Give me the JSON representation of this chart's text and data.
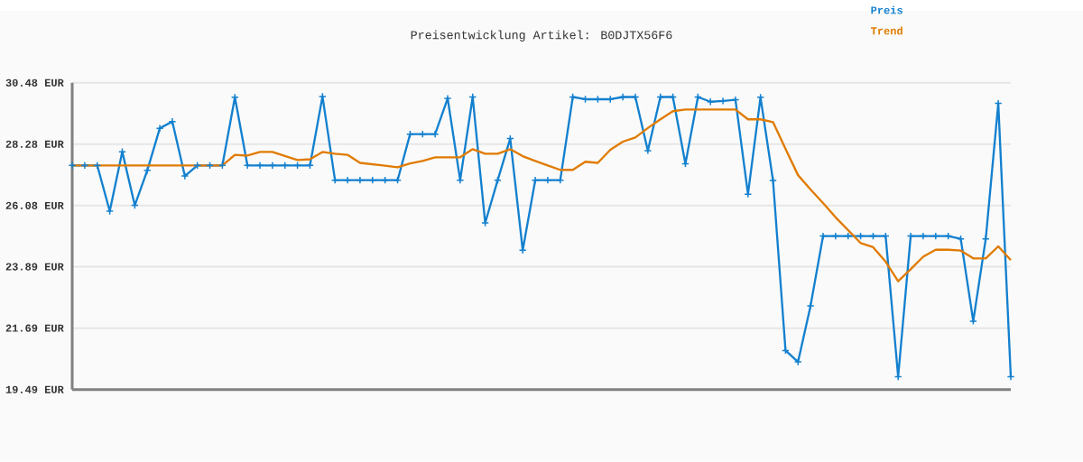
{
  "chart_data": {
    "type": "line",
    "title": "Preisentwicklung Artikel: B0DJTX56F6",
    "categories": [
      null,
      null,
      null,
      null,
      null,
      null,
      null,
      null,
      null,
      null,
      null,
      null,
      null,
      null,
      null,
      null,
      null,
      null,
      null,
      null,
      null,
      null,
      null,
      null,
      null,
      null,
      null,
      null,
      null,
      null,
      null,
      null,
      null,
      null,
      null,
      null,
      null,
      null,
      null,
      null,
      null,
      null,
      null,
      null,
      null,
      null,
      null,
      null,
      null,
      null,
      null,
      null,
      null,
      null,
      null,
      null,
      null,
      null,
      null,
      null,
      null,
      null,
      null,
      null,
      null,
      null,
      null,
      null,
      null,
      null,
      null,
      null,
      null,
      null,
      null,
      null
    ],
    "series": [
      {
        "name": "Preis",
        "color": "#1380cf",
        "marker": "cross",
        "values": [
          27.52,
          27.52,
          27.52,
          25.88,
          28.01,
          26.09,
          27.34,
          28.85,
          29.09,
          27.14,
          27.52,
          27.52,
          27.52,
          29.96,
          27.52,
          27.52,
          27.52,
          27.52,
          27.52,
          27.52,
          29.99,
          26.99,
          26.99,
          26.99,
          26.99,
          26.99,
          26.99,
          28.64,
          28.64,
          28.64,
          29.92,
          26.99,
          29.97,
          25.46,
          26.99,
          28.48,
          24.48,
          26.99,
          26.99,
          26.99,
          29.97,
          29.89,
          29.89,
          29.89,
          29.97,
          29.97,
          28.05,
          29.97,
          29.97,
          27.58,
          29.97,
          29.8,
          29.83,
          29.87,
          26.49,
          29.96,
          26.98,
          20.89,
          20.48,
          22.49,
          24.99,
          24.99,
          24.99,
          24.99,
          24.99,
          24.99,
          19.95,
          24.99,
          24.99,
          24.99,
          24.99,
          24.89,
          21.94,
          24.89,
          29.74,
          19.95
        ]
      },
      {
        "name": "Trend",
        "color": "#e07b00",
        "values": [
          27.52,
          27.52,
          27.52,
          27.52,
          27.52,
          27.52,
          27.52,
          27.52,
          27.52,
          27.52,
          27.52,
          27.52,
          27.52,
          27.9,
          27.87,
          28.0,
          28.0,
          27.86,
          27.71,
          27.74,
          28.0,
          27.94,
          27.9,
          27.61,
          27.56,
          27.51,
          27.45,
          27.59,
          27.68,
          27.81,
          27.81,
          27.81,
          28.1,
          27.94,
          27.94,
          28.1,
          27.85,
          27.68,
          27.52,
          27.36,
          27.36,
          27.65,
          27.61,
          28.08,
          28.37,
          28.52,
          28.86,
          29.17,
          29.46,
          29.52,
          29.52,
          29.52,
          29.52,
          29.52,
          29.17,
          29.17,
          29.07,
          28.11,
          27.17,
          26.66,
          26.17,
          25.66,
          25.2,
          24.74,
          24.59,
          24.07,
          23.37,
          23.8,
          24.25,
          24.5,
          24.5,
          24.47,
          24.19,
          24.19,
          24.62,
          24.13
        ]
      }
    ],
    "ylim": [
      19.49,
      30.48
    ],
    "yticks": [
      {
        "value": 19.49,
        "label": "19.49 EUR"
      },
      {
        "value": 21.69,
        "label": "21.69 EUR"
      },
      {
        "value": 23.89,
        "label": "23.89 EUR"
      },
      {
        "value": 26.08,
        "label": "26.08 EUR"
      },
      {
        "value": 28.28,
        "label": "28.28 EUR"
      },
      {
        "value": 30.48,
        "label": "30.48 EUR"
      }
    ],
    "grid": "y",
    "legend": "top right",
    "tick_labels": "y",
    "line_style": "solid"
  }
}
